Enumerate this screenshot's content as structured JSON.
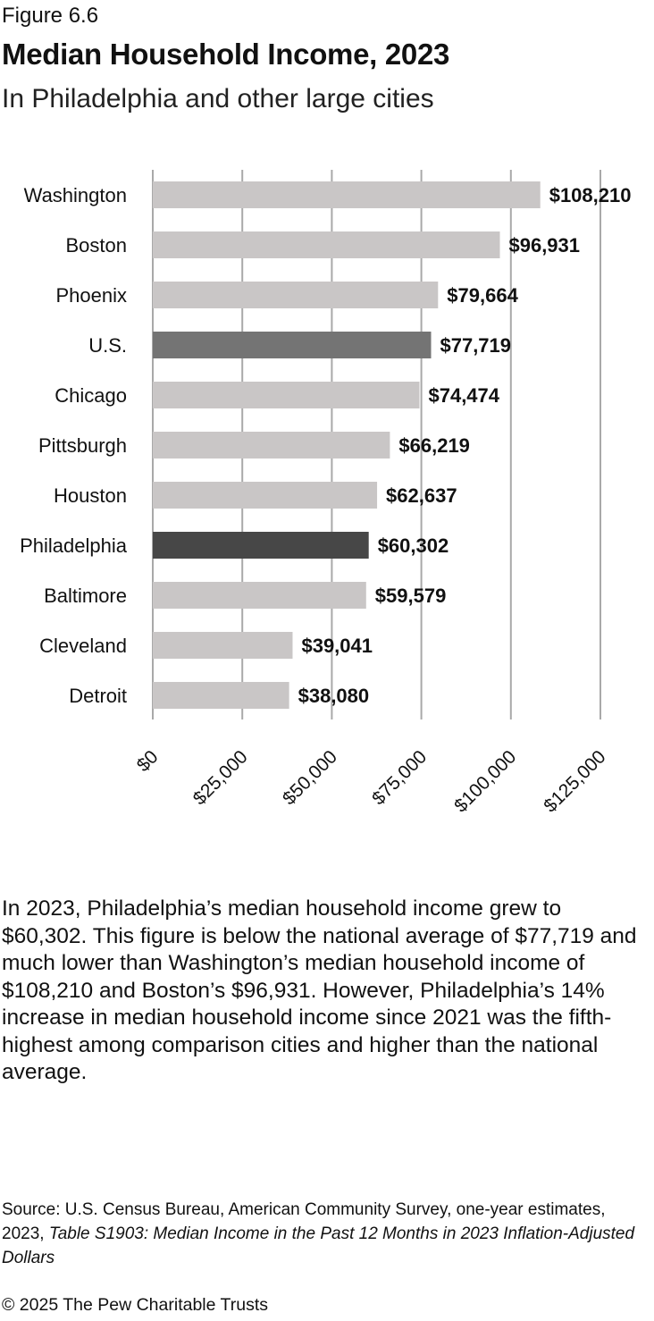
{
  "figure_label": "Figure 6.6",
  "title": "Median Household Income, 2023",
  "subtitle": "In Philadelphia and other large cities",
  "chart_data": {
    "type": "bar",
    "orientation": "horizontal",
    "categories": [
      "Washington",
      "Boston",
      "Phoenix",
      "U.S.",
      "Chicago",
      "Pittsburgh",
      "Houston",
      "Philadelphia",
      "Baltimore",
      "Cleveland",
      "Detroit"
    ],
    "values": [
      108210,
      96931,
      79664,
      77719,
      74474,
      66219,
      62637,
      60302,
      59579,
      39041,
      38080
    ],
    "data_labels": [
      "$108,210",
      "$96,931",
      "$79,664",
      "$77,719",
      "$74,474",
      "$66,219",
      "$62,637",
      "$60,302",
      "$59,579",
      "$39,041",
      "$38,080"
    ],
    "highlight": {
      "U.S.": "#747474",
      "Philadelphia": "#474747"
    },
    "bar_color": "#c9c6c6",
    "gridline_color": "#a9a9a9",
    "xlim": [
      0,
      125000
    ],
    "xticks": [
      0,
      25000,
      50000,
      75000,
      100000,
      125000
    ],
    "xtick_labels": [
      "$0",
      "$25,000",
      "$50,000",
      "$75,000",
      "$100,000",
      "$125,000"
    ],
    "grid": true,
    "xlabel": "",
    "ylabel": ""
  },
  "body_text": "In 2023, Philadelphia’s median household income grew to $60,302. This figure is below the national average of $77,719 and much lower than Washington’s median household income of $108,210 and Boston’s $96,931. However, Philadelphia’s 14% increase in median household income since 2021 was the fifth-highest among comparison cities and higher than the national average.",
  "source": {
    "prefix": "Source: U.S. Census Bureau, American Community Survey, one-year estimates, 2023, ",
    "italic": "Table S1903: Median Income in the Past 12 Months in 2023 Inflation-Adjusted Dollars"
  },
  "copyright": "© 2025 The Pew Charitable Trusts"
}
